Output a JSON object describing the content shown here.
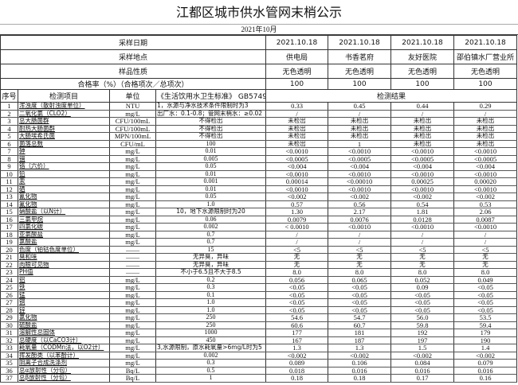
{
  "title": "江都区城市供水管网末梢公示",
  "month": "2021年10月",
  "info_rows": [
    {
      "label": "采样日期",
      "values": [
        "2021.10.18",
        "2021.10.18",
        "2021.10.18",
        "2021.10.18"
      ]
    },
    {
      "label": "采样地点",
      "values": [
        "供电局",
        "书香茗府",
        "友好医院",
        "邵伯镇水厂营业所"
      ]
    },
    {
      "label": "样品性质",
      "values": [
        "无色透明",
        "无色透明",
        "无色透明",
        "无色透明"
      ]
    },
    {
      "label": "合格率（%）（合格项次／总项次）",
      "values": [
        "100",
        "100",
        "100",
        "100"
      ]
    }
  ],
  "header": {
    "seq": "序号",
    "item": "检测项目",
    "unit": "单位",
    "standard": "《生活饮用水卫生标准》 GB5749",
    "results": "检测结果"
  },
  "rows": [
    [
      "1",
      "浑浊度（散射浊度单位）",
      "NTU",
      "1，水源与净水技术条件限制时为3",
      "0.33",
      "0.45",
      "0.44",
      "0.29"
    ],
    [
      "2",
      "二氧化氯（CLO2）",
      "mg/L",
      "出厂水：0.1-0.8；管网末梢水：≥0.02",
      "/",
      "/",
      "/",
      "/"
    ],
    [
      "3",
      "总大肠菌群",
      "CFU/100mL",
      "不得检出",
      "未检出",
      "未检出",
      "未检出",
      "未检出"
    ],
    [
      "4",
      "耐热大肠菌群",
      "CFU/100mL",
      "不得检出",
      "未检出",
      "未检出",
      "未检出",
      "未检出"
    ],
    [
      "5",
      "大肠埃希氏菌",
      "MPN/100mL",
      "不得检出",
      "未检出",
      "未检出",
      "未检出",
      "未检出"
    ],
    [
      "6",
      "菌落总数",
      "CFU/mL",
      "100",
      "未检出",
      "1",
      "未检出",
      "未检出"
    ],
    [
      "7",
      "砷",
      "mg/L",
      "0.01",
      "<0.0010",
      "<0.0010",
      "<0.0010",
      "<0.0010"
    ],
    [
      "8",
      "镉",
      "mg/L",
      "0.005",
      "<0.0005",
      "<0.0005",
      "<0.0005",
      "<0.0005"
    ],
    [
      "9",
      "铬（六价）",
      "mg/L",
      "0.05",
      "<0.004",
      "<0.004",
      "<0.004",
      "<0.004"
    ],
    [
      "10",
      "铅",
      "mg/L",
      "0.01",
      "<0.0010",
      "<0.0010",
      "<0.0010",
      "<0.0010"
    ],
    [
      "11",
      "汞",
      "mg/L",
      "0.001",
      "0.00014",
      "<0.00010",
      "0.00025",
      "0.00020"
    ],
    [
      "12",
      "硒",
      "mg/L",
      "0.01",
      "<0.0010",
      "<0.0010",
      "<0.0010",
      "<0.0010"
    ],
    [
      "13",
      "氰化物",
      "mg/L",
      "0.05",
      "<0.002",
      "<0.002",
      "<0.002",
      "<0.002"
    ],
    [
      "14",
      "氟化物",
      "mg/L",
      "1.0",
      "0.57",
      "0.56",
      "0.54",
      "0.53"
    ],
    [
      "15",
      "硝酸盐（以N计）",
      "mg/L",
      "10，地下水源限制时为20",
      "1.30",
      "2.17",
      "1.81",
      "2.06"
    ],
    [
      "16",
      "三氯甲烷",
      "mg/L",
      "0.06",
      "0.0079",
      "0.0076",
      "0.0128",
      "0.0087"
    ],
    [
      "17",
      "四氯化碳",
      "mg/L",
      "0.002",
      "< 0.0010",
      "<0.0010",
      "<0.0010",
      "<0.0010"
    ],
    [
      "18",
      "亚氯酸盐",
      "mg/L",
      "0.7",
      "/",
      "/",
      "/",
      "/"
    ],
    [
      "19",
      "氯酸盐",
      "mg/L",
      "0.7",
      "/",
      "/",
      "/",
      "/"
    ],
    [
      "20",
      "色度（铂钴色度单位）",
      "——",
      "15",
      "<5",
      "<5",
      "<5",
      "<5"
    ],
    [
      "21",
      "臭和味",
      "——",
      "无异臭，异味",
      "无",
      "无",
      "无",
      "无"
    ],
    [
      "22",
      "肉眼可见物",
      "——",
      "无异臭，异味",
      "无",
      "无",
      "无",
      "无"
    ],
    [
      "23",
      "PH值",
      "——",
      "不小于6.5且不大于8.5",
      "8.0",
      "8.0",
      "8.0",
      "8.0"
    ],
    [
      "24",
      "铝",
      "mg/L",
      "0.2",
      "0.056",
      "0.065",
      "0.052",
      "0.049"
    ],
    [
      "25",
      "铁",
      "mg/L",
      "0.3",
      "<0.05",
      "<0.05",
      "0.09",
      "<0.05"
    ],
    [
      "26",
      "锰",
      "mg/L",
      "0.1",
      "<0.05",
      "<0.05",
      "<0.05",
      "<0.05"
    ],
    [
      "27",
      "铜",
      "mg/L",
      "1.0",
      "<0.05",
      "<0.05",
      "<0.05",
      "<0.05"
    ],
    [
      "28",
      "锌",
      "mg/L",
      "1.0",
      "<0.05",
      "<0.05",
      "<0.05",
      "<0.05"
    ],
    [
      "29",
      "氯化物",
      "mg/L",
      "250",
      "54.6",
      "54.7",
      "56.0",
      "53.5"
    ],
    [
      "30",
      "硫酸盐",
      "mg/L",
      "250",
      "60.6",
      "60.7",
      "59.8",
      "59.4"
    ],
    [
      "31",
      "溶解性总固体",
      "mg/L",
      "1000",
      "177",
      "181",
      "192",
      "179"
    ],
    [
      "32",
      "总硬度（以CaCO3计）",
      "mg/L",
      "450",
      "167",
      "187",
      "197",
      "190"
    ],
    [
      "33",
      "耗氧量（CODMn法，以O2计）",
      "mg/L",
      "3,水源限制，原水耗氧量>6mg/L时为5",
      "1.3",
      "1.3",
      "1.5",
      "1.4"
    ],
    [
      "34",
      "挥发酚类（以苯酚计）",
      "mg/L",
      "0.002",
      "<0.002",
      "<0.002",
      "<0.002",
      "<0.002"
    ],
    [
      "35",
      "阴离子合成洗涤剂",
      "mg/L",
      "0.3",
      "0.089",
      "0.106",
      "0.084",
      "0.079"
    ],
    [
      "36",
      "总α放射性（分包）",
      "Bq/L",
      "0.5",
      "0.018",
      "0.016",
      "0.016",
      "0.016"
    ],
    [
      "37",
      "总β放射性（分包）",
      "Bq/L",
      "1",
      "0.18",
      "0.18",
      "0.17",
      "0.16"
    ]
  ]
}
